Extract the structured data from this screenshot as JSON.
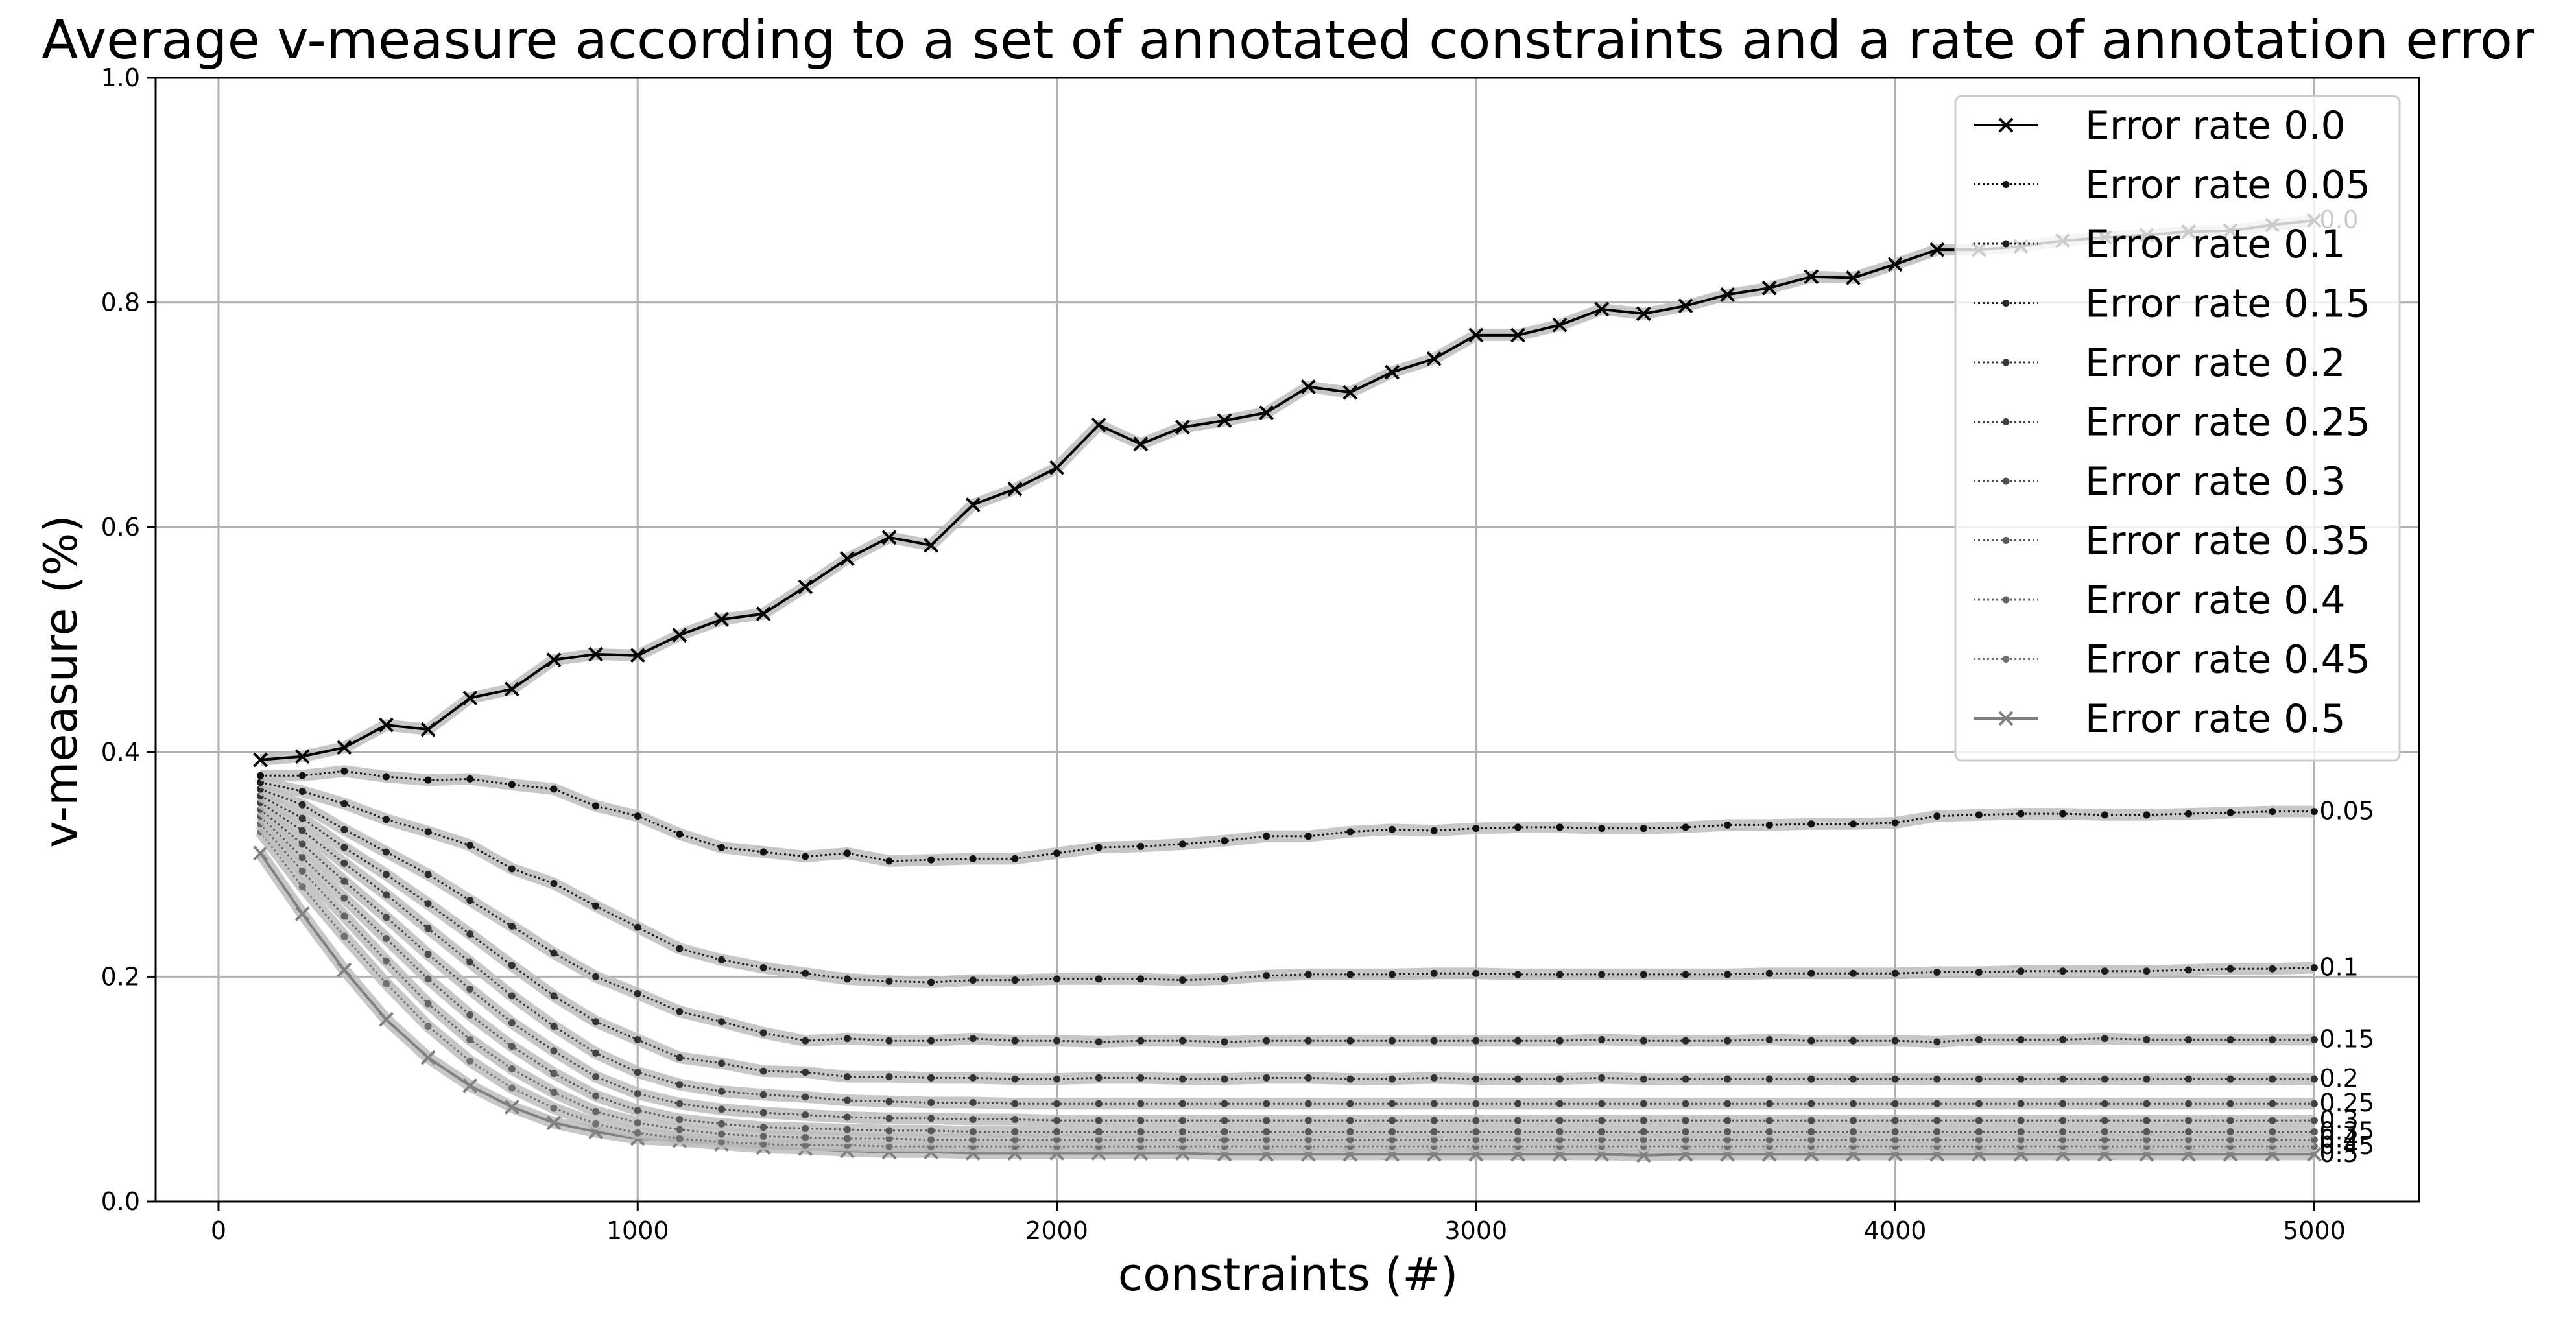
{
  "chart_data": {
    "type": "line",
    "title": "Average v-measure according to a set of annotated constraints and a rate of annotation error",
    "xlabel": "constraints (#)",
    "ylabel": "v-measure (%)",
    "xlim": [
      -150,
      5250
    ],
    "ylim": [
      0.0,
      1.0
    ],
    "grid": true,
    "legend_position": "top-right",
    "x_ticks": [
      0,
      1000,
      2000,
      3000,
      4000,
      5000
    ],
    "x_tick_labels": [
      "0",
      "1000",
      "2000",
      "3000",
      "4000",
      "5000"
    ],
    "y_ticks": [
      0.0,
      0.2,
      0.4,
      0.6,
      0.8,
      1.0
    ],
    "y_tick_labels": [
      "0.0",
      "0.2",
      "0.4",
      "0.6",
      "0.8",
      "1.0"
    ],
    "x": [
      100,
      200,
      300,
      400,
      500,
      600,
      700,
      800,
      900,
      1000,
      1100,
      1200,
      1300,
      1400,
      1500,
      1600,
      1700,
      1800,
      1900,
      2000,
      2100,
      2200,
      2300,
      2400,
      2500,
      2600,
      2700,
      2800,
      2900,
      3000,
      3100,
      3200,
      3300,
      3400,
      3500,
      3600,
      3700,
      3800,
      3900,
      4000,
      4100,
      4200,
      4300,
      4400,
      4500,
      4600,
      4700,
      4800,
      4900,
      5000
    ],
    "series": [
      {
        "name": "Error rate 0.0",
        "end_label": "0.0",
        "color": "#000000",
        "marker": "x",
        "line": "solid",
        "values": [
          0.393,
          0.396,
          0.404,
          0.424,
          0.42,
          0.448,
          0.456,
          0.482,
          0.487,
          0.486,
          0.504,
          0.518,
          0.523,
          0.547,
          0.572,
          0.591,
          0.584,
          0.62,
          0.634,
          0.653,
          0.691,
          0.674,
          0.689,
          0.695,
          0.702,
          0.725,
          0.72,
          0.738,
          0.75,
          0.771,
          0.771,
          0.78,
          0.794,
          0.79,
          0.797,
          0.807,
          0.813,
          0.823,
          0.822,
          0.834,
          0.847,
          0.847,
          0.85,
          0.855,
          0.858,
          0.86,
          0.863,
          0.864,
          0.869,
          0.873
        ]
      },
      {
        "name": "Error rate 0.05",
        "end_label": "0.05",
        "color": "#111111",
        "marker": "dot",
        "line": "dotted",
        "values": [
          0.379,
          0.379,
          0.383,
          0.378,
          0.375,
          0.376,
          0.371,
          0.367,
          0.352,
          0.343,
          0.327,
          0.315,
          0.311,
          0.307,
          0.31,
          0.303,
          0.304,
          0.305,
          0.305,
          0.31,
          0.315,
          0.316,
          0.318,
          0.321,
          0.325,
          0.325,
          0.329,
          0.331,
          0.33,
          0.332,
          0.333,
          0.333,
          0.332,
          0.332,
          0.333,
          0.335,
          0.335,
          0.336,
          0.336,
          0.337,
          0.343,
          0.344,
          0.345,
          0.345,
          0.344,
          0.344,
          0.345,
          0.346,
          0.347,
          0.347
        ]
      },
      {
        "name": "Error rate 0.1",
        "end_label": "0.1",
        "color": "#1c1c1c",
        "marker": "dot",
        "line": "dotted",
        "values": [
          0.373,
          0.365,
          0.354,
          0.34,
          0.329,
          0.317,
          0.296,
          0.283,
          0.263,
          0.244,
          0.225,
          0.215,
          0.208,
          0.203,
          0.198,
          0.196,
          0.195,
          0.197,
          0.197,
          0.198,
          0.198,
          0.198,
          0.197,
          0.198,
          0.201,
          0.202,
          0.202,
          0.202,
          0.203,
          0.203,
          0.202,
          0.202,
          0.202,
          0.202,
          0.202,
          0.202,
          0.203,
          0.203,
          0.203,
          0.203,
          0.204,
          0.204,
          0.205,
          0.205,
          0.205,
          0.205,
          0.206,
          0.207,
          0.207,
          0.208
        ]
      },
      {
        "name": "Error rate 0.15",
        "end_label": "0.15",
        "color": "#282828",
        "marker": "dot",
        "line": "dotted",
        "values": [
          0.367,
          0.353,
          0.331,
          0.311,
          0.291,
          0.268,
          0.245,
          0.221,
          0.2,
          0.185,
          0.169,
          0.16,
          0.15,
          0.143,
          0.145,
          0.143,
          0.143,
          0.145,
          0.143,
          0.143,
          0.142,
          0.143,
          0.143,
          0.142,
          0.143,
          0.143,
          0.143,
          0.143,
          0.143,
          0.143,
          0.143,
          0.143,
          0.144,
          0.143,
          0.143,
          0.143,
          0.144,
          0.143,
          0.143,
          0.143,
          0.142,
          0.144,
          0.144,
          0.144,
          0.145,
          0.144,
          0.144,
          0.144,
          0.144,
          0.144
        ]
      },
      {
        "name": "Error rate 0.2",
        "end_label": "0.2",
        "color": "#343434",
        "marker": "dot",
        "line": "dotted",
        "values": [
          0.361,
          0.341,
          0.315,
          0.291,
          0.265,
          0.238,
          0.21,
          0.183,
          0.16,
          0.144,
          0.128,
          0.123,
          0.116,
          0.115,
          0.111,
          0.111,
          0.11,
          0.11,
          0.109,
          0.109,
          0.11,
          0.11,
          0.109,
          0.109,
          0.11,
          0.11,
          0.109,
          0.109,
          0.11,
          0.109,
          0.109,
          0.109,
          0.11,
          0.109,
          0.109,
          0.109,
          0.109,
          0.109,
          0.109,
          0.109,
          0.109,
          0.109,
          0.109,
          0.109,
          0.109,
          0.109,
          0.109,
          0.109,
          0.109,
          0.109
        ]
      },
      {
        "name": "Error rate 0.25",
        "end_label": "0.25",
        "color": "#404040",
        "marker": "dot",
        "line": "dotted",
        "values": [
          0.355,
          0.33,
          0.301,
          0.273,
          0.243,
          0.213,
          0.183,
          0.156,
          0.132,
          0.115,
          0.104,
          0.098,
          0.095,
          0.093,
          0.09,
          0.089,
          0.088,
          0.088,
          0.087,
          0.087,
          0.087,
          0.087,
          0.087,
          0.087,
          0.087,
          0.087,
          0.087,
          0.087,
          0.087,
          0.087,
          0.087,
          0.087,
          0.087,
          0.087,
          0.087,
          0.087,
          0.087,
          0.087,
          0.087,
          0.087,
          0.087,
          0.087,
          0.087,
          0.087,
          0.087,
          0.087,
          0.087,
          0.087,
          0.087,
          0.087
        ]
      },
      {
        "name": "Error rate 0.3",
        "end_label": "0.3",
        "color": "#4c4c4c",
        "marker": "dot",
        "line": "dotted",
        "values": [
          0.349,
          0.318,
          0.285,
          0.253,
          0.22,
          0.189,
          0.159,
          0.134,
          0.111,
          0.096,
          0.087,
          0.082,
          0.079,
          0.077,
          0.075,
          0.074,
          0.074,
          0.073,
          0.073,
          0.072,
          0.072,
          0.072,
          0.072,
          0.072,
          0.072,
          0.072,
          0.072,
          0.072,
          0.072,
          0.072,
          0.072,
          0.072,
          0.072,
          0.072,
          0.072,
          0.072,
          0.072,
          0.072,
          0.072,
          0.072,
          0.072,
          0.072,
          0.072,
          0.072,
          0.072,
          0.072,
          0.072,
          0.072,
          0.072,
          0.072
        ]
      },
      {
        "name": "Error rate 0.35",
        "end_label": "0.35",
        "color": "#585858",
        "marker": "dot",
        "line": "dotted",
        "values": [
          0.343,
          0.306,
          0.27,
          0.234,
          0.198,
          0.166,
          0.138,
          0.114,
          0.094,
          0.081,
          0.073,
          0.069,
          0.066,
          0.065,
          0.064,
          0.063,
          0.063,
          0.062,
          0.062,
          0.062,
          0.062,
          0.062,
          0.062,
          0.062,
          0.062,
          0.062,
          0.062,
          0.062,
          0.062,
          0.062,
          0.062,
          0.062,
          0.062,
          0.062,
          0.062,
          0.062,
          0.062,
          0.062,
          0.062,
          0.062,
          0.062,
          0.062,
          0.062,
          0.062,
          0.062,
          0.062,
          0.062,
          0.062,
          0.062,
          0.062
        ]
      },
      {
        "name": "Error rate 0.4",
        "end_label": "0.4",
        "color": "#646464",
        "marker": "dot",
        "line": "dotted",
        "values": [
          0.336,
          0.294,
          0.254,
          0.214,
          0.176,
          0.144,
          0.118,
          0.097,
          0.08,
          0.07,
          0.064,
          0.06,
          0.058,
          0.057,
          0.056,
          0.056,
          0.055,
          0.055,
          0.055,
          0.055,
          0.055,
          0.055,
          0.055,
          0.055,
          0.055,
          0.055,
          0.055,
          0.055,
          0.055,
          0.055,
          0.055,
          0.055,
          0.055,
          0.055,
          0.055,
          0.055,
          0.055,
          0.055,
          0.055,
          0.055,
          0.055,
          0.055,
          0.055,
          0.055,
          0.055,
          0.055,
          0.055,
          0.055,
          0.055,
          0.055
        ]
      },
      {
        "name": "Error rate 0.45",
        "end_label": "0.45",
        "color": "#707070",
        "marker": "dot",
        "line": "dotted",
        "values": [
          0.329,
          0.28,
          0.236,
          0.194,
          0.156,
          0.125,
          0.101,
          0.083,
          0.069,
          0.061,
          0.056,
          0.053,
          0.051,
          0.05,
          0.05,
          0.049,
          0.049,
          0.049,
          0.049,
          0.049,
          0.049,
          0.049,
          0.049,
          0.049,
          0.049,
          0.049,
          0.049,
          0.049,
          0.049,
          0.049,
          0.049,
          0.049,
          0.049,
          0.049,
          0.049,
          0.049,
          0.049,
          0.049,
          0.049,
          0.049,
          0.049,
          0.049,
          0.049,
          0.049,
          0.049,
          0.049,
          0.049,
          0.049,
          0.049,
          0.049
        ]
      },
      {
        "name": "Error rate 0.5",
        "end_label": "0.5",
        "color": "#808080",
        "marker": "x",
        "line": "solid",
        "values": [
          0.31,
          0.256,
          0.206,
          0.162,
          0.128,
          0.103,
          0.084,
          0.07,
          0.062,
          0.056,
          0.054,
          0.051,
          0.048,
          0.047,
          0.045,
          0.044,
          0.044,
          0.043,
          0.043,
          0.043,
          0.043,
          0.043,
          0.043,
          0.042,
          0.042,
          0.042,
          0.042,
          0.042,
          0.042,
          0.042,
          0.042,
          0.042,
          0.042,
          0.041,
          0.042,
          0.042,
          0.042,
          0.042,
          0.042,
          0.042,
          0.042,
          0.042,
          0.042,
          0.042,
          0.042,
          0.042,
          0.042,
          0.042,
          0.042,
          0.042
        ]
      }
    ]
  }
}
